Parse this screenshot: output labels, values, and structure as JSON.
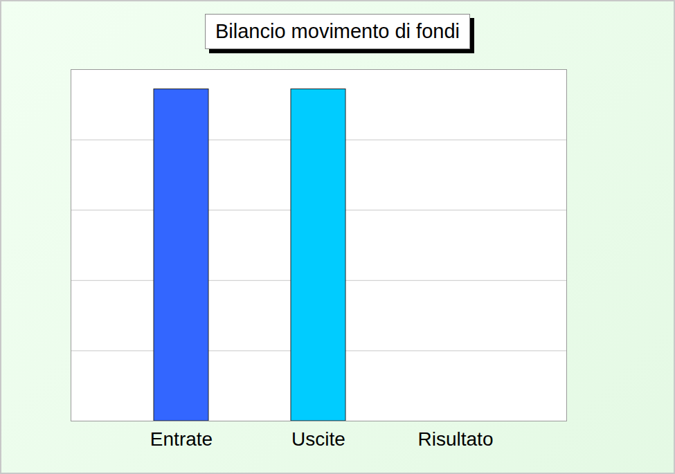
{
  "chart_data": {
    "type": "bar",
    "title": "Bilancio movimento di fondi",
    "categories": [
      "Entrate",
      "Uscite",
      "Risultato"
    ],
    "values": [
      4.72,
      4.72,
      0
    ],
    "colors": [
      "#3366ff",
      "#00ccff",
      "#99cccc"
    ],
    "ylim": [
      0,
      5
    ],
    "yticks": [
      0,
      1,
      2,
      3,
      4,
      5
    ],
    "grid": true,
    "tick_labels": "x"
  }
}
